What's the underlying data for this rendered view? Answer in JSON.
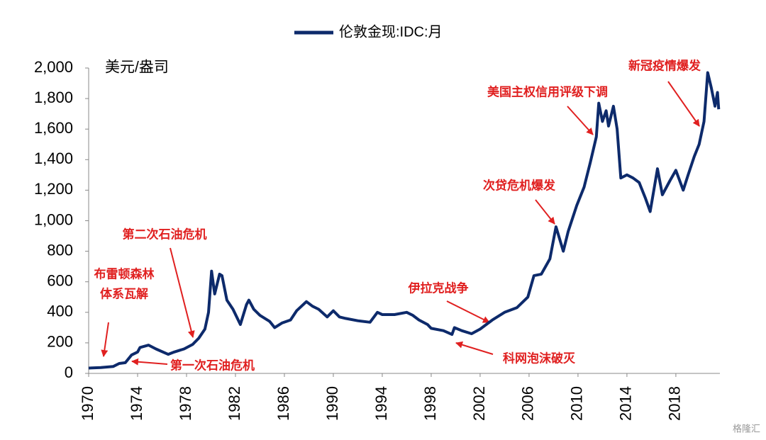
{
  "chart_data": {
    "type": "line",
    "y_label": "美元/盎司",
    "watermark": "格隆汇",
    "x": [
      1970,
      1971,
      1972,
      1972.5,
      1973,
      1973.5,
      1974,
      1974.2,
      1974.9,
      1975.5,
      1976.5,
      1977,
      1977.8,
      1978.5,
      1979,
      1979.5,
      1979.8,
      1980.05,
      1980.3,
      1980.7,
      1980.9,
      1981.3,
      1981.8,
      1982.4,
      1982.9,
      1983.1,
      1983.5,
      1984,
      1984.8,
      1985.2,
      1985.8,
      1986.5,
      1987,
      1987.8,
      1988.3,
      1988.8,
      1989.5,
      1990,
      1990.5,
      1991,
      1992,
      1993,
      1993.6,
      1994,
      1995,
      1996,
      1996.5,
      1997,
      1997.7,
      1998,
      1999,
      1999.7,
      1999.9,
      2000.5,
      2001.3,
      2002,
      2002.5,
      2003,
      2004,
      2005,
      2005.9,
      2006.4,
      2007,
      2007.7,
      2008.2,
      2008.8,
      2009.2,
      2009.9,
      2010.5,
      2011,
      2011.5,
      2011.7,
      2012,
      2012.3,
      2012.5,
      2012.9,
      2013.2,
      2013.5,
      2014,
      2014.5,
      2015,
      2015.5,
      2015.9,
      2016.5,
      2016.9,
      2017.5,
      2018,
      2018.6,
      2019,
      2019.5,
      2019.9,
      2020.3,
      2020.6,
      2020.9,
      2021.2,
      2021.4,
      2021.5
    ],
    "series": [
      {
        "name": "伦敦金现:IDC:月",
        "color": "#0d2a6b",
        "values": [
          35,
          38,
          45,
          65,
          70,
          120,
          140,
          170,
          185,
          160,
          125,
          140,
          160,
          190,
          230,
          290,
          400,
          670,
          520,
          650,
          640,
          480,
          420,
          320,
          450,
          480,
          420,
          380,
          340,
          300,
          330,
          350,
          410,
          470,
          440,
          420,
          370,
          410,
          370,
          360,
          345,
          335,
          400,
          385,
          385,
          400,
          380,
          350,
          320,
          295,
          280,
          255,
          300,
          280,
          260,
          290,
          320,
          350,
          400,
          430,
          500,
          640,
          650,
          750,
          960,
          800,
          930,
          1100,
          1220,
          1380,
          1550,
          1770,
          1650,
          1720,
          1620,
          1750,
          1600,
          1280,
          1300,
          1280,
          1250,
          1150,
          1060,
          1340,
          1170,
          1260,
          1330,
          1200,
          1300,
          1420,
          1500,
          1650,
          1970,
          1870,
          1750,
          1840,
          1730
        ]
      }
    ],
    "xlim": [
      1970,
      2021.6
    ],
    "xticks": [
      1970,
      1974,
      1978,
      1982,
      1986,
      1990,
      1994,
      1998,
      2002,
      2006,
      2010,
      2014,
      2018
    ],
    "ylim": [
      0,
      2000
    ],
    "yticks": [
      0,
      {
        "value": 200,
        "label": "200"
      },
      {
        "value": 400,
        "label": "400"
      },
      {
        "value": 600,
        "label": "600"
      },
      {
        "value": 800,
        "label": "800"
      },
      {
        "value": 1000,
        "label": "1,000"
      },
      {
        "value": 1200,
        "label": "1,200"
      },
      {
        "value": 1400,
        "label": "1,400"
      },
      {
        "value": 1600,
        "label": "1,600"
      },
      {
        "value": 1800,
        "label": "1,800"
      },
      {
        "value": 2000,
        "label": "2,000"
      }
    ],
    "annotations": [
      "布雷顿森林",
      "体系瓦解",
      "第二次石油危机",
      "第一次石油危机",
      "伊拉克战争",
      "科网泡沫破灭",
      "次贷危机爆发",
      "美国主权信用评级下调",
      "新冠疫情爆发"
    ]
  }
}
